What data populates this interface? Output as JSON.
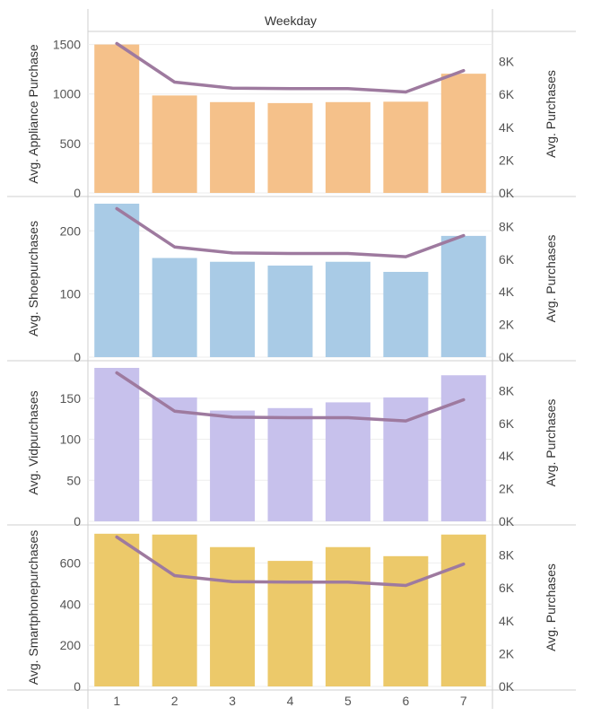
{
  "header": {
    "title": "Weekday"
  },
  "colors": {
    "line": "#9e7a9f",
    "grid": "#eeeeee",
    "divider": "#cfcfcf",
    "appliance": "#f5c18a",
    "shoe": "#a9cbe6",
    "vid": "#c7c1ec",
    "smartphone": "#ecc96a"
  },
  "chart_data": {
    "type": "bar",
    "title": "",
    "xlabel": "Weekday",
    "categories": [
      "1",
      "2",
      "3",
      "4",
      "5",
      "6",
      "7"
    ],
    "line_series": {
      "name": "Avg. Purchases",
      "values": [
        9100,
        6750,
        6380,
        6350,
        6350,
        6150,
        7450
      ],
      "ylabel": "Avg. Purchases",
      "ylim": [
        0,
        9400
      ],
      "ticks": [
        0,
        2000,
        4000,
        6000,
        8000
      ],
      "tick_labels": [
        "0K",
        "2K",
        "4K",
        "6K",
        "8K"
      ]
    },
    "panels": [
      {
        "name": "appliance",
        "ylabel": "Avg. Appliance Purchase",
        "values": [
          1500,
          985,
          918,
          908,
          918,
          922,
          1205
        ],
        "ylim": [
          0,
          1560
        ],
        "ticks": [
          0,
          500,
          1000,
          1500
        ],
        "tick_labels": [
          "0",
          "500",
          "1000",
          "1500"
        ],
        "color": "#f5c18a"
      },
      {
        "name": "shoe",
        "ylabel": "Avg. Shoepurchases",
        "values": [
          243,
          157,
          151,
          145,
          151,
          135,
          192
        ],
        "ylim": [
          0,
          243
        ],
        "ticks": [
          0,
          100,
          200
        ],
        "tick_labels": [
          "0",
          "100",
          "200"
        ],
        "color": "#a9cbe6"
      },
      {
        "name": "vid",
        "ylabel": "Avg. Vidpurchases",
        "values": [
          187,
          151,
          135,
          138,
          145,
          151,
          178
        ],
        "ylim": [
          0,
          187
        ],
        "ticks": [
          0,
          50,
          100,
          150
        ],
        "tick_labels": [
          "0",
          "50",
          "100",
          "150"
        ],
        "color": "#c7c1ec"
      },
      {
        "name": "smartphone",
        "ylabel": "Avg. Smartphonepurchases",
        "values": [
          742,
          738,
          677,
          610,
          677,
          633,
          738
        ],
        "ylim": [
          0,
          750
        ],
        "ticks": [
          0,
          200,
          400,
          600
        ],
        "tick_labels": [
          "0",
          "200",
          "400",
          "600"
        ],
        "color": "#ecc96a"
      }
    ]
  }
}
